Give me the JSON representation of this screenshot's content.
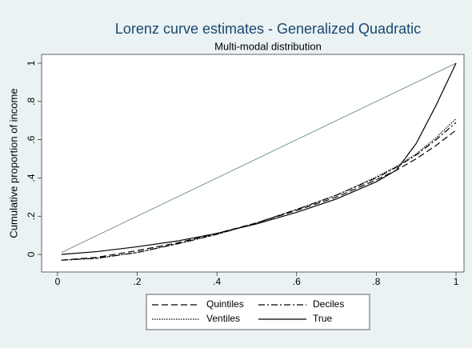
{
  "chart_data": {
    "type": "line",
    "title": "Lorenz curve estimates - Generalized Quadratic",
    "subtitle": "Multi-modal distribution",
    "y_label": "Cumulative proportion of income",
    "x": [
      0.01,
      0.1,
      0.2,
      0.3,
      0.4,
      0.5,
      0.6,
      0.7,
      0.8,
      0.85,
      0.9,
      0.95,
      1
    ],
    "series": [
      {
        "name": "Quintiles",
        "color": "#000000",
        "dash": "8,4",
        "values": [
          -0.03,
          -0.015,
          0.02,
          0.06,
          0.11,
          0.165,
          0.23,
          0.3,
          0.39,
          0.44,
          0.5,
          0.57,
          0.65
        ]
      },
      {
        "name": "Deciles",
        "color": "#000000",
        "dash": "8,3,2,3",
        "values": [
          -0.03,
          -0.02,
          0.01,
          0.055,
          0.105,
          0.165,
          0.235,
          0.31,
          0.4,
          0.455,
          0.52,
          0.6,
          0.69
        ]
      },
      {
        "name": "Ventiles",
        "color": "#000000",
        "dash": "1.5,1.5",
        "values": [
          -0.03,
          -0.02,
          0.01,
          0.055,
          0.105,
          0.165,
          0.235,
          0.31,
          0.405,
          0.46,
          0.525,
          0.61,
          0.71
        ]
      },
      {
        "name": "True",
        "color": "#000000",
        "dash": "none",
        "values": [
          0,
          0.015,
          0.04,
          0.07,
          0.11,
          0.16,
          0.22,
          0.29,
          0.38,
          0.44,
          0.58,
          0.78,
          1
        ]
      }
    ],
    "reference_line": {
      "color": "#7b9b8e",
      "x": [
        0.01,
        1
      ],
      "y": [
        0.01,
        1
      ]
    },
    "xlim": [
      -0.04,
      1.02
    ],
    "ylim": [
      -0.092,
      1.046
    ],
    "xticks": [
      0,
      {
        "value": 0.2,
        "label": ".2"
      },
      {
        "value": 0.4,
        "label": ".4"
      },
      {
        "value": 0.6,
        "label": ".6"
      },
      {
        "value": 0.8,
        "label": ".8"
      },
      1
    ],
    "yticks": [
      0,
      {
        "value": 0.2,
        "label": ".2"
      },
      {
        "value": 0.4,
        "label": ".4"
      },
      {
        "value": 0.6,
        "label": ".6"
      },
      {
        "value": 0.8,
        "label": ".8"
      },
      1
    ],
    "title_color": "#1a476f",
    "background": "#eaf2f3"
  }
}
